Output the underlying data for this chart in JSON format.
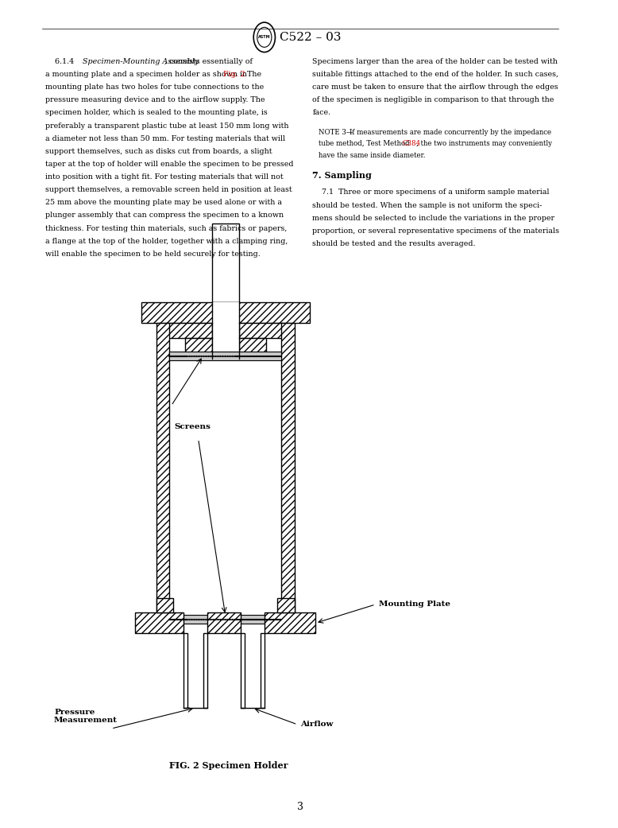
{
  "page_width": 7.78,
  "page_height": 10.41,
  "bg_color": "#ffffff",
  "text_color": "#000000",
  "red_color": "#cc0000",
  "header_text": "C522 – 03",
  "left_col_text": [
    {
      "text": "    6.1.4 ",
      "style": "normal"
    },
    {
      "text": "Specimen-Mounting Assembly",
      "style": "italic"
    },
    {
      "text": ", consists essentially of\na mounting plate and a specimen holder as shown in ",
      "style": "normal"
    },
    {
      "text": "Fig. 2",
      "style": "red"
    },
    {
      "text": ". The\nmounting plate has two holes for tube connections to the\npressure measuring device and to the airflow supply. The\nspecimen holder, which is sealed to the mounting plate, is\npreferably a transparent plastic tube at least 150 mm long with\na diameter not less than 50 mm. For testing materials that will\nsupport themselves, such as disks cut from boards, a slight\ntaper at the top of holder will enable the specimen to be pressed\ninto position with a tight fit. For testing materials that will not\nsupport themselves, a removable screen held in position at least\n25 mm above the mounting plate may be used alone or with a\nplunger assembly that can compress the specimen to a known\nthickness. For testing thin materials, such as fabrics or papers,\na flange at the top of the holder, together with a clamping ring,\nwill enable the specimen to be held securely for testing.",
      "style": "normal"
    }
  ],
  "right_col_text_1": "Specimens larger than the area of the holder can be tested with\nsuitable fittings attached to the end of the holder. In such cases,\ncare must be taken to ensure that the airflow through the edges\nof the specimen is negligible in comparison to that through the\nface.",
  "note_label": "NOTE 3—",
  "note_text": "If measurements are made concurrently by the impedance\ntube method, Test Method ",
  "note_ref": "C384",
  "note_text2": ", the two instruments may conveniently\nhave the same inside diameter.",
  "section_title": "7. Sampling",
  "section_text": "    7.1  Three or more specimens of a uniform sample material\nshould be tested. When the sample is not uniform the speci-\nmens should be selected to include the variations in the proper\nproportion, or several representative specimens of the materials\nshould be tested and the results averaged.",
  "fig_caption": "FIG. 2 Specimen Holder",
  "label_screens": "Screens",
  "label_mounting": "Mounting Plate",
  "label_pressure": "Pressure\nMeasurement",
  "label_airflow": "Airflow",
  "page_number": "3"
}
